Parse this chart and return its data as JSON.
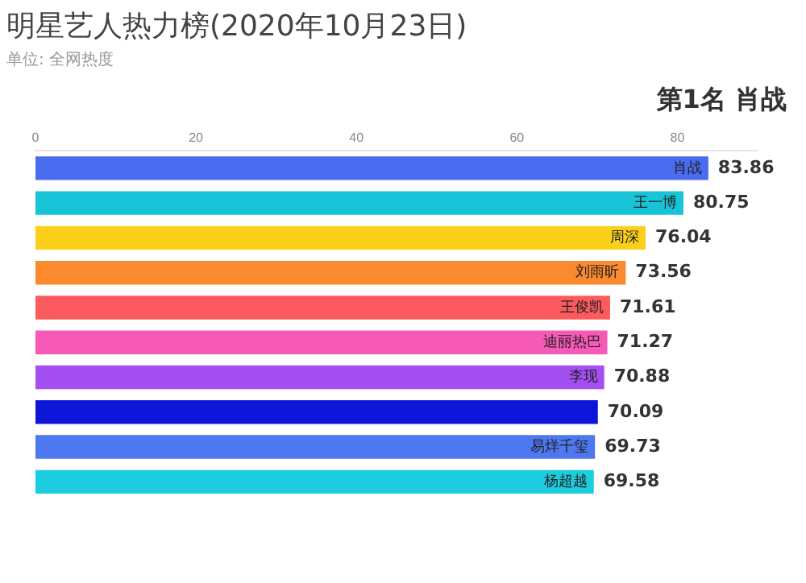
{
  "chart_data": {
    "type": "bar",
    "orientation": "horizontal",
    "title": "明星艺人热力榜(2020年10月23日)",
    "subtitle": "单位: 全网热度",
    "annotations": [
      "第1名 肖战"
    ],
    "categories": [
      "肖战",
      "王一博",
      "周深",
      "刘雨昕",
      "王俊凯",
      "迪丽热巴",
      "李现",
      null,
      "易烊千玺",
      "杨超越"
    ],
    "values": [
      83.86,
      80.75,
      76.04,
      73.56,
      71.61,
      71.27,
      70.88,
      70.09,
      69.73,
      69.58
    ],
    "colors": [
      "#4a6cf0",
      "#17c3d6",
      "#fbcf1a",
      "#fb8a2e",
      "#fb5b5f",
      "#f759b6",
      "#a44ff2",
      "#0d16d8",
      "#4e78f0",
      "#1ccde0"
    ],
    "xlim": [
      0,
      90
    ],
    "xticks": [
      0,
      20,
      40,
      60,
      80
    ],
    "grid": false,
    "data_labels": true,
    "legend": false
  }
}
